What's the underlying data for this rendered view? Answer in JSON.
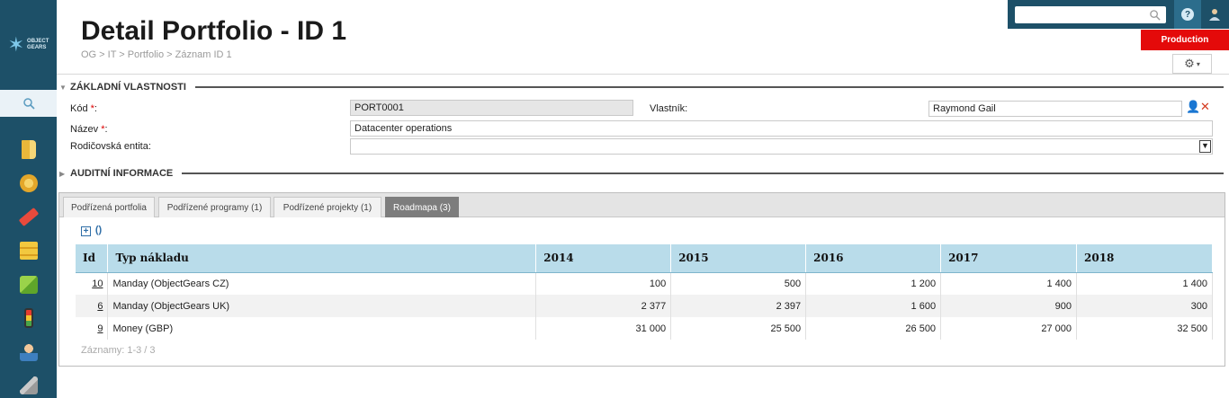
{
  "sidebar": {
    "logo_lines": [
      "OBJECT",
      "GEARS"
    ],
    "icons": [
      "portfolio-icon",
      "badge-icon",
      "tag-icon",
      "coins-icon",
      "package-icon",
      "traffic-light-icon",
      "person-icon",
      "broom-icon"
    ]
  },
  "header": {
    "title": "Detail Portfolio - ID 1",
    "breadcrumb": "OG > IT > Portfolio > Záznam ID 1"
  },
  "topbar": {
    "search_placeholder": "",
    "help_label": "?",
    "environment_badge": "Production"
  },
  "basic_section": {
    "title": "ZÁKLADNÍ VLASTNOSTI",
    "kod_label": "Kód",
    "kod_value": "PORT0001",
    "nazev_label": "Název",
    "nazev_value": "Datacenter operations",
    "rodic_label": "Rodičovská entita:",
    "rodic_value": "",
    "vlastnik_label": "Vlastník:",
    "vlastnik_value": "Raymond Gail",
    "required_mark": "*",
    "colon": ":"
  },
  "audit_section": {
    "title": "AUDITNÍ INFORMACE"
  },
  "tabs": [
    {
      "label": "Podřízená portfolia",
      "active": false
    },
    {
      "label": "Podřízené programy (1)",
      "active": false
    },
    {
      "label": "Podřízené projekty (1)",
      "active": false
    },
    {
      "label": "Roadmapa (3)",
      "active": true
    }
  ],
  "table": {
    "columns": [
      "Id",
      "Typ nákladu",
      "2014",
      "2015",
      "2016",
      "2017",
      "2018"
    ],
    "rows": [
      {
        "id": "10",
        "type": "Manday (ObjectGears CZ)",
        "y2014": "100",
        "y2015": "500",
        "y2016": "1 200",
        "y2017": "1 400",
        "y2018": "1 400"
      },
      {
        "id": "6",
        "type": "Manday (ObjectGears UK)",
        "y2014": "2 377",
        "y2015": "2 397",
        "y2016": "1 600",
        "y2017": "900",
        "y2018": "300"
      },
      {
        "id": "9",
        "type": "Money (GBP)",
        "y2014": "31 000",
        "y2015": "25 500",
        "y2016": "26 500",
        "y2017": "27 000",
        "y2018": "32 500"
      }
    ],
    "records_text": "Záznamy: 1-3 / 3"
  },
  "colors": {
    "sidebar_bg": "#1d5068",
    "header_row": "#b9dcea",
    "production_badge": "#e40a0a",
    "active_tab": "#7d7d7d"
  }
}
